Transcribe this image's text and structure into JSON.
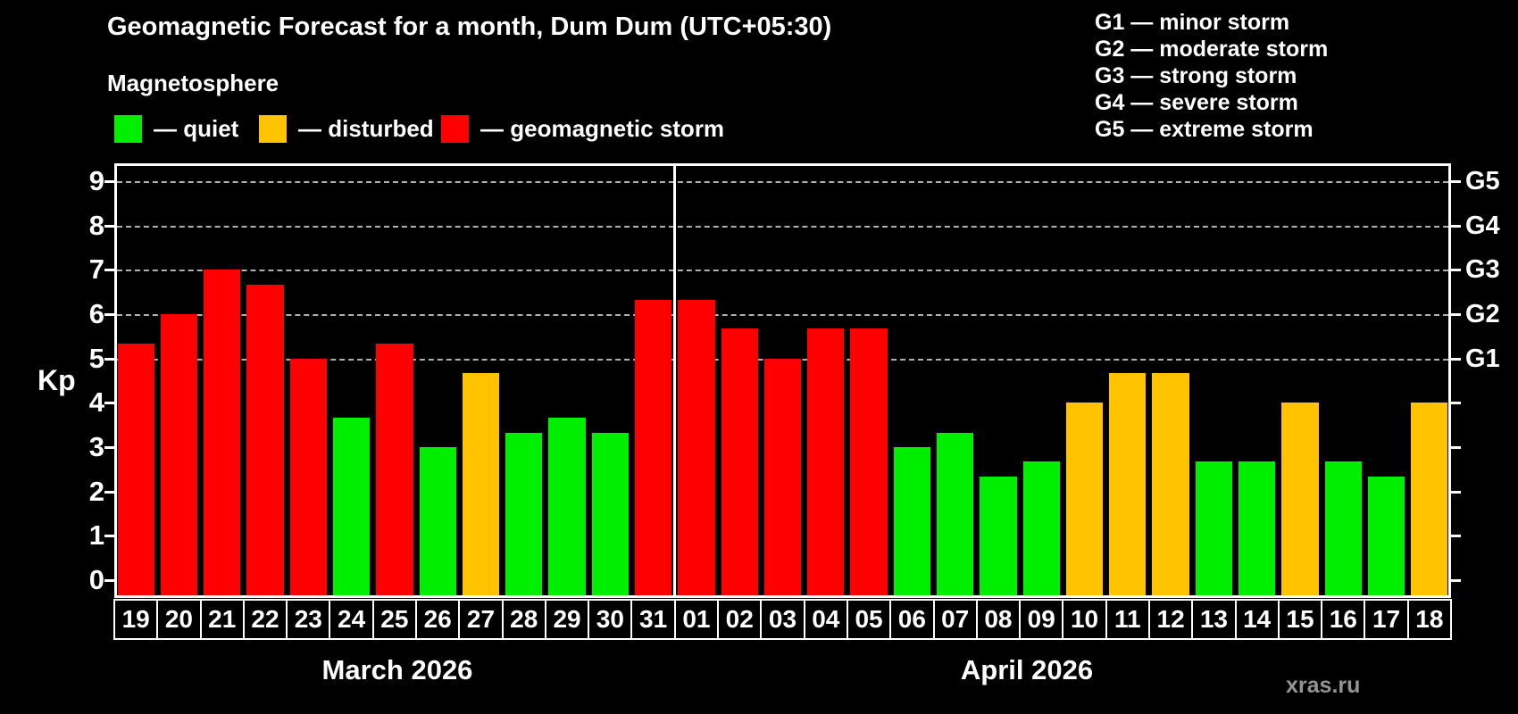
{
  "header": {
    "title": "Geomagnetic Forecast for a month, Dum Dum (UTC+05:30)",
    "subtitle": "Magnetosphere"
  },
  "legend": [
    {
      "key": "quiet",
      "label": "— quiet"
    },
    {
      "key": "disturbed",
      "label": "— disturbed"
    },
    {
      "key": "storm",
      "label": "— geomagnetic storm"
    }
  ],
  "g_legend": [
    "G1 — minor storm",
    "G2 — moderate storm",
    "G3 — strong storm",
    "G4 — severe storm",
    "G5 — extreme storm"
  ],
  "colors": {
    "quiet": "#00ee00",
    "disturbed": "#ffc300",
    "storm": "#ff0000",
    "axis": "#ffffff",
    "grid": "#b0b0b0",
    "background": "#000000",
    "watermark": "#949494"
  },
  "watermark": "xras.ru",
  "chart_data": {
    "type": "bar",
    "title": "Geomagnetic Forecast for a month, Dum Dum (UTC+05:30)",
    "ylabel": "Kp",
    "ylim": [
      0,
      9
    ],
    "yticks": [
      0,
      1,
      2,
      3,
      4,
      5,
      6,
      7,
      8,
      9
    ],
    "grid": "dashed horizontal lines at Kp 5-9 only",
    "legend_position": "top",
    "right_axis": [
      {
        "label": "G1",
        "kp": 5
      },
      {
        "label": "G2",
        "kp": 6
      },
      {
        "label": "G3",
        "kp": 7
      },
      {
        "label": "G4",
        "kp": 8
      },
      {
        "label": "G5",
        "kp": 9
      }
    ],
    "months": [
      {
        "label": "March 2026",
        "days": [
          {
            "day": "19",
            "kp": 5.33,
            "status": "storm"
          },
          {
            "day": "20",
            "kp": 6.0,
            "status": "storm"
          },
          {
            "day": "21",
            "kp": 7.0,
            "status": "storm"
          },
          {
            "day": "22",
            "kp": 6.67,
            "status": "storm"
          },
          {
            "day": "23",
            "kp": 5.0,
            "status": "storm"
          },
          {
            "day": "24",
            "kp": 3.67,
            "status": "quiet"
          },
          {
            "day": "25",
            "kp": 5.33,
            "status": "storm"
          },
          {
            "day": "26",
            "kp": 3.0,
            "status": "quiet"
          },
          {
            "day": "27",
            "kp": 4.67,
            "status": "disturbed"
          },
          {
            "day": "28",
            "kp": 3.33,
            "status": "quiet"
          },
          {
            "day": "29",
            "kp": 3.67,
            "status": "quiet"
          },
          {
            "day": "30",
            "kp": 3.33,
            "status": "quiet"
          },
          {
            "day": "31",
            "kp": 6.33,
            "status": "storm"
          }
        ]
      },
      {
        "label": "April 2026",
        "days": [
          {
            "day": "01",
            "kp": 6.33,
            "status": "storm"
          },
          {
            "day": "02",
            "kp": 5.67,
            "status": "storm"
          },
          {
            "day": "03",
            "kp": 5.0,
            "status": "storm"
          },
          {
            "day": "04",
            "kp": 5.67,
            "status": "storm"
          },
          {
            "day": "05",
            "kp": 5.67,
            "status": "storm"
          },
          {
            "day": "06",
            "kp": 3.0,
            "status": "quiet"
          },
          {
            "day": "07",
            "kp": 3.33,
            "status": "quiet"
          },
          {
            "day": "08",
            "kp": 2.33,
            "status": "quiet"
          },
          {
            "day": "09",
            "kp": 2.67,
            "status": "quiet"
          },
          {
            "day": "10",
            "kp": 4.0,
            "status": "disturbed"
          },
          {
            "day": "11",
            "kp": 4.67,
            "status": "disturbed"
          },
          {
            "day": "12",
            "kp": 4.67,
            "status": "disturbed"
          },
          {
            "day": "13",
            "kp": 2.67,
            "status": "quiet"
          },
          {
            "day": "14",
            "kp": 2.67,
            "status": "quiet"
          },
          {
            "day": "15",
            "kp": 4.0,
            "status": "disturbed"
          },
          {
            "day": "16",
            "kp": 2.67,
            "status": "quiet"
          },
          {
            "day": "17",
            "kp": 2.33,
            "status": "quiet"
          },
          {
            "day": "18",
            "kp": 4.0,
            "status": "disturbed"
          }
        ]
      }
    ]
  }
}
